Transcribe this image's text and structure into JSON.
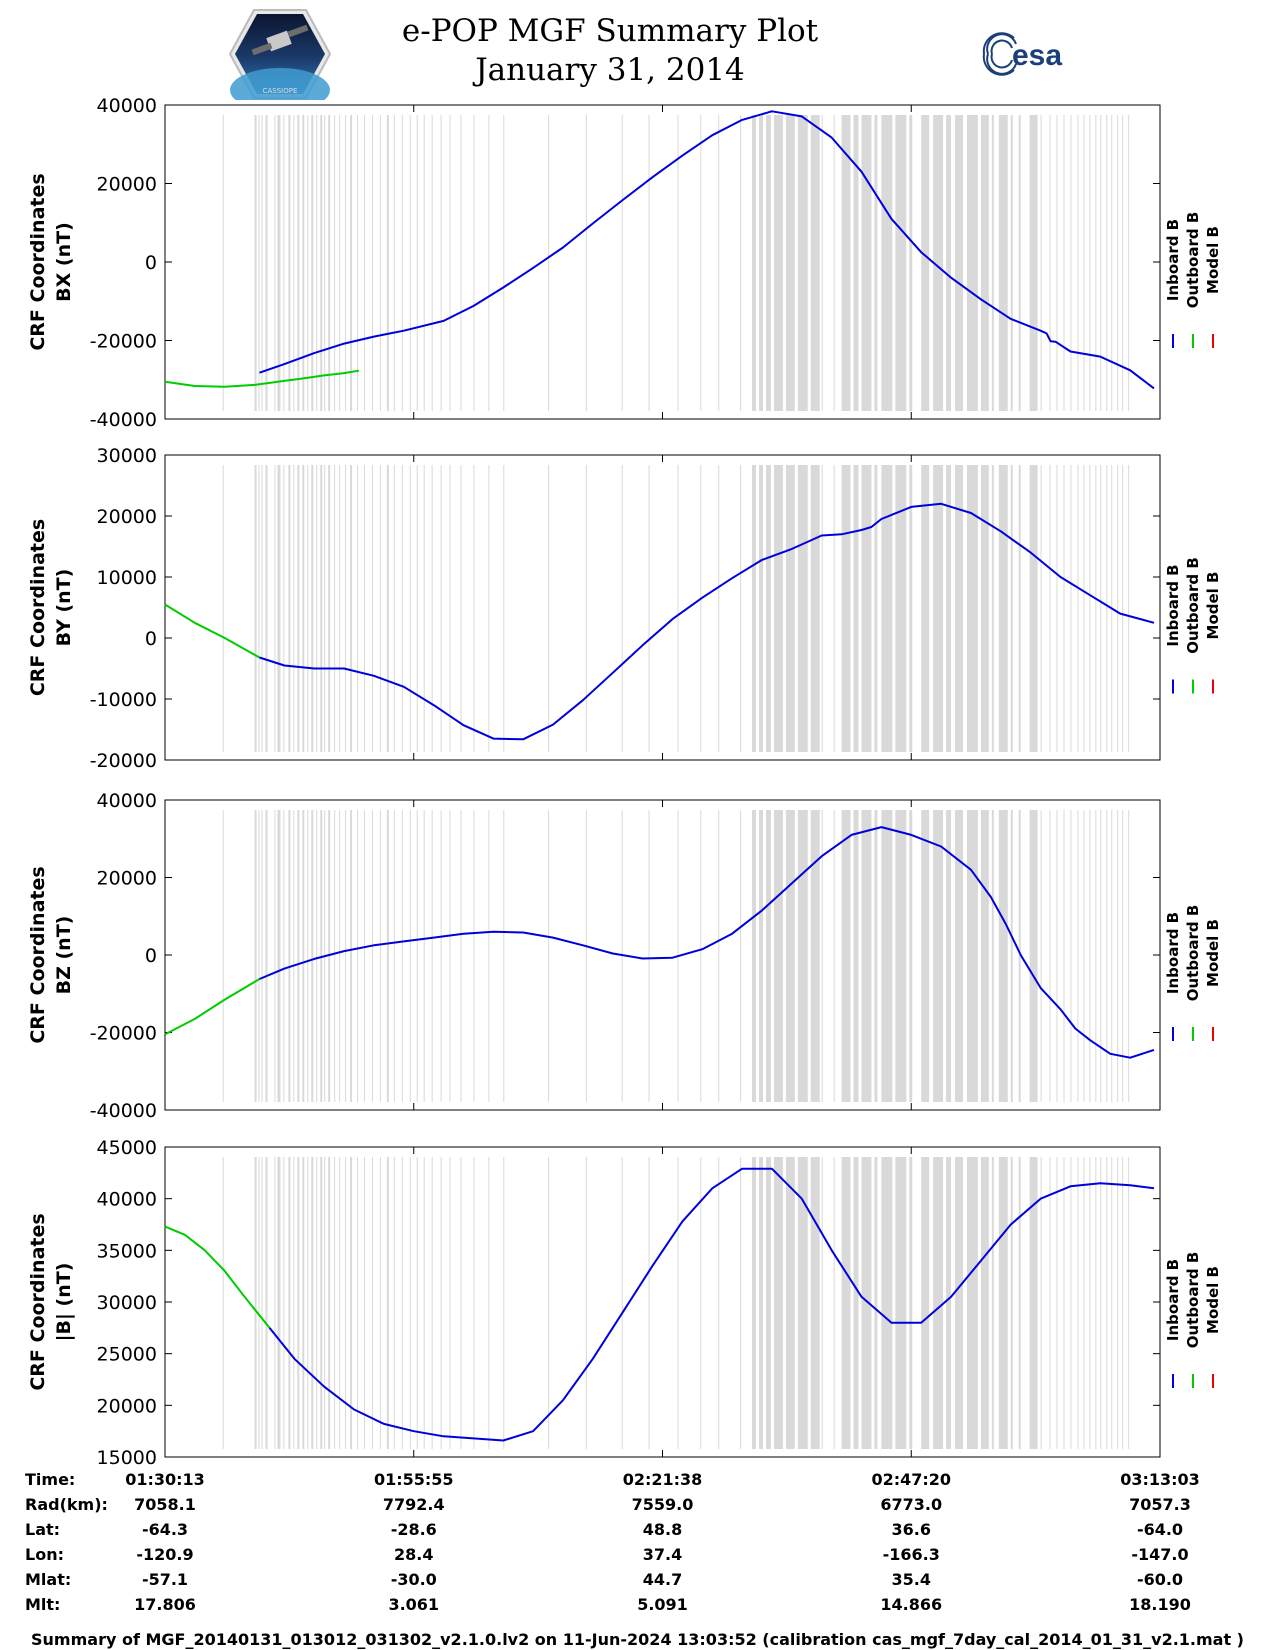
{
  "header": {
    "title_line1": "e-POP MGF Summary Plot",
    "title_line2": "January 31, 2014",
    "left_logo_caption": "CASSIOPE",
    "right_logo_text": "esa"
  },
  "colors": {
    "inboard": "#0000dd",
    "outboard": "#00cc00",
    "model": "#ee0000",
    "data_gap": "#d9d9d9"
  },
  "legend": [
    "Inboard B",
    "Outboard B",
    "Model B"
  ],
  "chart_data": [
    {
      "type": "line",
      "ylabel_line1": "CRF Coordinates",
      "ylabel_line2": "BX (nT)",
      "ylim": [
        -40000,
        40000
      ],
      "yticks": [
        -40000,
        -20000,
        0,
        20000,
        40000
      ],
      "xlim": [
        0,
        100
      ],
      "outboard": {
        "x": [
          0,
          3,
          6,
          9,
          12,
          14,
          16,
          18,
          19.5
        ],
        "y": [
          -30500,
          -31600,
          -31800,
          -31300,
          -30300,
          -29600,
          -28900,
          -28300,
          -27700
        ]
      },
      "inboard": {
        "x": [
          9.5,
          12,
          15,
          18,
          21,
          24,
          28,
          31,
          34,
          37,
          40,
          43,
          46,
          49,
          52,
          55,
          58,
          61,
          64,
          67,
          70,
          73,
          76,
          79,
          82,
          85,
          88,
          88.6,
          89,
          89.5,
          91,
          94,
          97,
          99.4
        ],
        "y": [
          -28200,
          -26000,
          -23200,
          -20800,
          -19000,
          -17500,
          -15000,
          -11200,
          -6500,
          -1500,
          3700,
          9800,
          15800,
          21600,
          27100,
          32300,
          36200,
          38400,
          37100,
          31700,
          23000,
          11000,
          2500,
          -4000,
          -9500,
          -14500,
          -17500,
          -18200,
          -20200,
          -20300,
          -22800,
          -24100,
          -27600,
          -32200
        ]
      }
    },
    {
      "type": "line",
      "ylabel_line1": "CRF Coordinates",
      "ylabel_line2": "BY (nT)",
      "ylim": [
        -20000,
        30000
      ],
      "yticks": [
        -20000,
        -10000,
        0,
        10000,
        20000,
        30000
      ],
      "xlim": [
        0,
        100
      ],
      "outboard": {
        "x": [
          0,
          3,
          6,
          9.5
        ],
        "y": [
          5500,
          2500,
          0,
          -3200
        ]
      },
      "inboard": {
        "x": [
          9.5,
          12,
          15,
          18,
          21,
          24,
          27,
          30,
          33,
          36,
          39,
          42,
          45,
          48,
          51,
          54,
          57,
          60,
          63,
          66,
          68,
          70,
          71,
          72,
          75,
          78,
          81,
          84,
          87,
          90,
          93,
          96,
          99.4
        ],
        "y": [
          -3200,
          -4500,
          -5000,
          -5000,
          -6200,
          -8000,
          -11000,
          -14300,
          -16500,
          -16600,
          -14200,
          -10200,
          -5700,
          -1200,
          3100,
          6600,
          9800,
          12800,
          14600,
          16800,
          17000,
          17700,
          18200,
          19500,
          21500,
          22000,
          20500,
          17500,
          14000,
          10000,
          7000,
          4000,
          2500
        ]
      }
    },
    {
      "type": "line",
      "ylabel_line1": "CRF Coordinates",
      "ylabel_line2": "BZ (nT)",
      "ylim": [
        -40000,
        40000
      ],
      "yticks": [
        -40000,
        -20000,
        0,
        20000,
        40000
      ],
      "xlim": [
        0,
        100
      ],
      "outboard": {
        "x": [
          0,
          3,
          6,
          9.5
        ],
        "y": [
          -20500,
          -16500,
          -11500,
          -6200
        ]
      },
      "inboard": {
        "x": [
          9.5,
          12,
          15,
          18,
          21,
          24,
          27,
          30,
          33,
          36,
          39,
          42,
          45,
          48,
          51,
          54,
          57,
          60,
          63,
          66,
          69,
          72,
          75,
          78,
          81,
          83,
          84.5,
          86,
          88,
          90,
          91.5,
          93,
          95,
          97,
          99.4
        ],
        "y": [
          -6200,
          -3500,
          -1000,
          1000,
          2500,
          3500,
          4500,
          5500,
          6000,
          5800,
          4500,
          2500,
          400,
          -900,
          -700,
          1500,
          5500,
          11500,
          18500,
          25500,
          31000,
          33000,
          31000,
          28000,
          22000,
          15000,
          8000,
          0,
          -8500,
          -14000,
          -19000,
          -22000,
          -25500,
          -26500,
          -24500
        ]
      }
    },
    {
      "type": "line",
      "ylabel_line1": "CRF Coordinates",
      "ylabel_line2": "|B| (nT)",
      "ylim": [
        15000,
        45000
      ],
      "yticks": [
        15000,
        20000,
        25000,
        30000,
        35000,
        40000,
        45000
      ],
      "xlim": [
        0,
        100
      ],
      "outboard": {
        "x": [
          0,
          2,
          4,
          6,
          8,
          10.5
        ],
        "y": [
          37300,
          36500,
          35000,
          33000,
          30500,
          27500
        ]
      },
      "inboard": {
        "x": [
          10.5,
          13,
          16,
          19,
          22,
          25,
          28,
          31,
          34,
          37,
          40,
          43,
          46,
          49,
          52,
          55,
          58,
          61,
          64,
          67,
          70,
          73,
          76,
          79,
          82,
          85,
          88,
          91,
          94,
          97,
          99.4
        ],
        "y": [
          27500,
          24500,
          21800,
          19600,
          18200,
          17500,
          17000,
          16800,
          16600,
          17500,
          20500,
          24500,
          29000,
          33500,
          37800,
          41000,
          42900,
          42900,
          40000,
          35000,
          30500,
          28000,
          28000,
          30500,
          34000,
          37500,
          40000,
          41200,
          41500,
          41300,
          41000
        ]
      }
    }
  ],
  "time_axis": {
    "ticks": [
      "01:30:13",
      "01:55:55",
      "02:21:38",
      "02:47:20",
      "03:13:03"
    ],
    "tick_positions": [
      0,
      25,
      50,
      75,
      100
    ]
  },
  "ephemeris": {
    "rows": [
      {
        "label": "Time:",
        "values": [
          "01:30:13",
          "01:55:55",
          "02:21:38",
          "02:47:20",
          "03:13:03"
        ]
      },
      {
        "label": "Rad(km):",
        "values": [
          "7058.1",
          "7792.4",
          "7559.0",
          "6773.0",
          "7057.3"
        ]
      },
      {
        "label": "Lat:",
        "values": [
          "-64.3",
          "-28.6",
          "48.8",
          "36.6",
          "-64.0"
        ]
      },
      {
        "label": "Lon:",
        "values": [
          "-120.9",
          "28.4",
          "37.4",
          "-166.3",
          "-147.0"
        ]
      },
      {
        "label": "Mlat:",
        "values": [
          "-57.1",
          "-30.0",
          "44.7",
          "35.4",
          "-60.0"
        ]
      },
      {
        "label": "Mlt:",
        "values": [
          "17.806",
          "3.061",
          "5.091",
          "14.866",
          "18.190"
        ]
      }
    ]
  },
  "gap_bands": [
    [
      5.8,
      5.9
    ],
    [
      9.0,
      9.2
    ],
    [
      9.4,
      9.5
    ],
    [
      9.7,
      9.8
    ],
    [
      10.1,
      10.3
    ],
    [
      11.0,
      11.1
    ],
    [
      11.3,
      11.6
    ],
    [
      11.9,
      12.0
    ],
    [
      12.4,
      12.6
    ],
    [
      12.9,
      13.0
    ],
    [
      13.3,
      13.5
    ],
    [
      13.8,
      14.0
    ],
    [
      14.3,
      14.4
    ],
    [
      14.7,
      14.9
    ],
    [
      15.2,
      15.3
    ],
    [
      15.6,
      15.8
    ],
    [
      16.0,
      16.1
    ],
    [
      16.4,
      16.6
    ],
    [
      17.0,
      17.1
    ],
    [
      17.5,
      17.6
    ],
    [
      18.1,
      18.2
    ],
    [
      18.6,
      18.8
    ],
    [
      19.3,
      19.4
    ],
    [
      20.0,
      20.1
    ],
    [
      20.8,
      20.9
    ],
    [
      21.6,
      21.7
    ],
    [
      22.3,
      22.5
    ],
    [
      23.0,
      23.1
    ],
    [
      23.8,
      23.9
    ],
    [
      24.6,
      24.7
    ],
    [
      25.3,
      25.4
    ],
    [
      26.0,
      26.1
    ],
    [
      26.8,
      26.9
    ],
    [
      27.7,
      27.8
    ],
    [
      28.6,
      28.7
    ],
    [
      29.7,
      29.8
    ],
    [
      31.0,
      31.1
    ],
    [
      32.5,
      32.6
    ],
    [
      34.0,
      34.1
    ],
    [
      38.5,
      38.6
    ],
    [
      42.3,
      42.4
    ],
    [
      45.9,
      46.0
    ],
    [
      48.6,
      48.7
    ],
    [
      51.5,
      51.6
    ],
    [
      53.8,
      53.9
    ],
    [
      55.6,
      55.7
    ],
    [
      57.8,
      57.9
    ],
    [
      59.0,
      59.4
    ],
    [
      59.7,
      60.1
    ],
    [
      60.4,
      60.9
    ],
    [
      61.2,
      62.1
    ],
    [
      62.4,
      63.3
    ],
    [
      63.6,
      64.6
    ],
    [
      64.9,
      65.8
    ],
    [
      66.0,
      66.1
    ],
    [
      67.2,
      67.3
    ],
    [
      68.0,
      68.9
    ],
    [
      69.2,
      69.7
    ],
    [
      70.0,
      71.0
    ],
    [
      71.3,
      71.6
    ],
    [
      72.0,
      73.1
    ],
    [
      73.4,
      74.5
    ],
    [
      74.8,
      75.1
    ],
    [
      76.0,
      76.8
    ],
    [
      77.2,
      78.2
    ],
    [
      78.5,
      79.0
    ],
    [
      79.4,
      80.2
    ],
    [
      80.6,
      81.7
    ],
    [
      82.0,
      82.8
    ],
    [
      83.1,
      83.3
    ],
    [
      83.8,
      84.7
    ],
    [
      85.0,
      85.2
    ],
    [
      85.8,
      86.0
    ],
    [
      86.9,
      87.7
    ],
    [
      88.0,
      88.1
    ],
    [
      88.9,
      89.0
    ],
    [
      89.6,
      89.7
    ],
    [
      90.3,
      90.4
    ],
    [
      91.0,
      91.1
    ],
    [
      91.7,
      91.8
    ],
    [
      92.3,
      92.4
    ],
    [
      92.9,
      93.0
    ],
    [
      93.5,
      93.6
    ],
    [
      94.0,
      94.1
    ],
    [
      94.6,
      94.7
    ],
    [
      95.1,
      95.2
    ],
    [
      95.7,
      95.8
    ],
    [
      96.2,
      96.3
    ],
    [
      96.8,
      96.9
    ]
  ],
  "footer": "Summary of MGF_20140131_013012_031302_v2.1.0.lv2 on 11-Jun-2024 13:03:52 (calibration cas_mgf_7day_cal_2014_01_31_v2.1.mat )"
}
